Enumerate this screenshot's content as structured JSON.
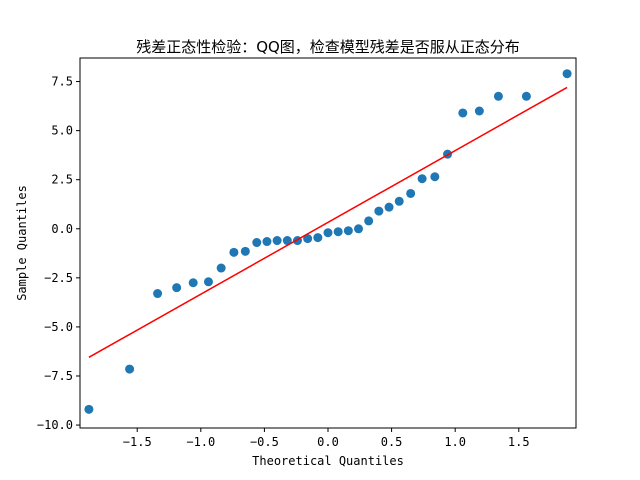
{
  "chart_data": {
    "type": "scatter",
    "title": "残差正态性检验：QQ图，检查模型残差是否服从正态分布",
    "xlabel": "Theoretical Quantiles",
    "ylabel": "Sample Quantiles",
    "xlim": [
      -1.95,
      1.95
    ],
    "ylim": [
      -10.15,
      8.7
    ],
    "xticks": [
      -1.5,
      -1.0,
      -0.5,
      0.0,
      0.5,
      1.0,
      1.5
    ],
    "xtick_labels": [
      "−1.5",
      "−1.0",
      "−0.5",
      "0.0",
      "0.5",
      "1.0",
      "1.5"
    ],
    "yticks": [
      -10.0,
      -7.5,
      -5.0,
      -2.5,
      0.0,
      2.5,
      5.0,
      7.5
    ],
    "ytick_labels": [
      "−10.0",
      "−7.5",
      "−5.0",
      "−2.5",
      "0.0",
      "2.5",
      "5.0",
      "7.5"
    ],
    "grid": false,
    "series": [
      {
        "type": "scatter",
        "color": "#1f77b4",
        "points": [
          [
            -1.88,
            -9.2
          ],
          [
            -1.56,
            -7.15
          ],
          [
            -1.34,
            -3.3
          ],
          [
            -1.19,
            -3.0
          ],
          [
            -1.06,
            -2.75
          ],
          [
            -0.94,
            -2.7
          ],
          [
            -0.84,
            -2.0
          ],
          [
            -0.74,
            -1.2
          ],
          [
            -0.65,
            -1.15
          ],
          [
            -0.56,
            -0.7
          ],
          [
            -0.48,
            -0.65
          ],
          [
            -0.4,
            -0.6
          ],
          [
            -0.32,
            -0.6
          ],
          [
            -0.24,
            -0.6
          ],
          [
            -0.16,
            -0.5
          ],
          [
            -0.08,
            -0.45
          ],
          [
            0.0,
            -0.2
          ],
          [
            0.08,
            -0.15
          ],
          [
            0.16,
            -0.1
          ],
          [
            0.24,
            0.0
          ],
          [
            0.32,
            0.4
          ],
          [
            0.4,
            0.9
          ],
          [
            0.48,
            1.1
          ],
          [
            0.56,
            1.4
          ],
          [
            0.65,
            1.8
          ],
          [
            0.74,
            2.55
          ],
          [
            0.84,
            2.65
          ],
          [
            0.94,
            3.8
          ],
          [
            1.06,
            5.9
          ],
          [
            1.19,
            6.0
          ],
          [
            1.34,
            6.75
          ],
          [
            1.56,
            6.75
          ],
          [
            1.88,
            7.9
          ]
        ]
      },
      {
        "type": "line",
        "color": "#ff0000",
        "points": [
          [
            -1.88,
            -6.55
          ],
          [
            1.88,
            7.2
          ]
        ]
      }
    ]
  }
}
